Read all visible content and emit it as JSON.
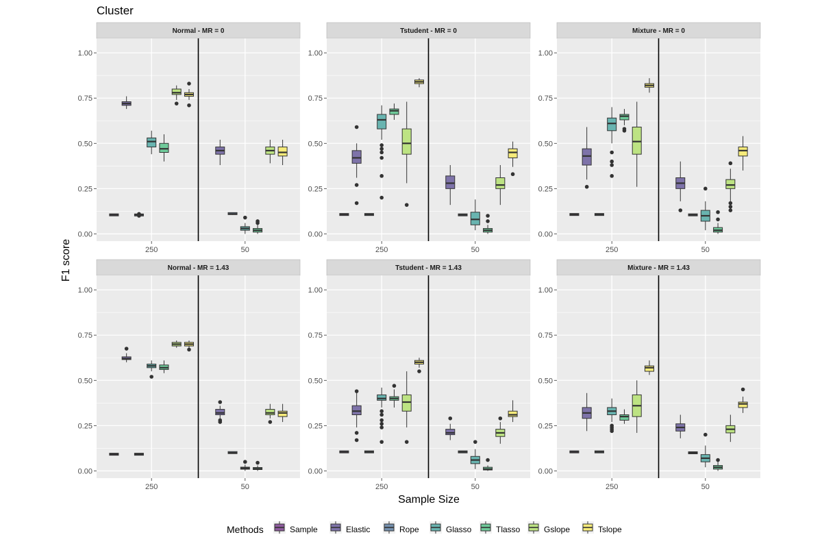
{
  "chart_data": {
    "type": "box",
    "title": "Cluster",
    "xlabel": "Sample Size",
    "ylabel": "F1 score",
    "ylim": [
      -0.04,
      1.08
    ],
    "yticks": [
      "0.00",
      "0.25",
      "0.50",
      "0.75",
      "1.00"
    ],
    "ytick_values": [
      0,
      0.25,
      0.5,
      0.75,
      1.0
    ],
    "groups": [
      "250",
      "50"
    ],
    "legend": {
      "title": "Methods",
      "position": "bottom",
      "items": [
        {
          "name": "Sample",
          "color": "#8E5B9E"
        },
        {
          "name": "Elastic",
          "color": "#7E73A9"
        },
        {
          "name": "Rope",
          "color": "#7591AF"
        },
        {
          "name": "Glasso",
          "color": "#69B4B0"
        },
        {
          "name": "Tlasso",
          "color": "#6FCA9A"
        },
        {
          "name": "Gslope",
          "color": "#BDE383"
        },
        {
          "name": "Tslope",
          "color": "#F6EB7A"
        }
      ]
    },
    "panels": [
      {
        "strip": "Normal - MR = 0",
        "boxes": [
          [
            {
              "s": 0,
              "m": 0.105,
              "q1": 0.104,
              "q3": 0.106,
              "lo": 0.103,
              "hi": 0.107,
              "o": []
            },
            {
              "s": 1,
              "m": 0.72,
              "q1": 0.71,
              "q3": 0.73,
              "lo": 0.69,
              "hi": 0.76,
              "o": []
            },
            {
              "s": 2,
              "m": 0.105,
              "q1": 0.101,
              "q3": 0.108,
              "lo": 0.1,
              "hi": 0.11,
              "o": [
                0.1,
                0.11
              ]
            },
            {
              "s": 3,
              "m": 0.51,
              "q1": 0.48,
              "q3": 0.53,
              "lo": 0.44,
              "hi": 0.57,
              "o": []
            },
            {
              "s": 4,
              "m": 0.47,
              "q1": 0.45,
              "q3": 0.5,
              "lo": 0.4,
              "hi": 0.55,
              "o": []
            },
            {
              "s": 5,
              "m": 0.78,
              "q1": 0.77,
              "q3": 0.8,
              "lo": 0.74,
              "hi": 0.82,
              "o": [
                0.72
              ]
            },
            {
              "s": 6,
              "m": 0.77,
              "q1": 0.76,
              "q3": 0.78,
              "lo": 0.74,
              "hi": 0.8,
              "o": [
                0.71,
                0.83
              ]
            }
          ],
          [
            {
              "s": 1,
              "m": 0.46,
              "q1": 0.44,
              "q3": 0.48,
              "lo": 0.38,
              "hi": 0.52,
              "o": []
            },
            {
              "s": 2,
              "m": 0.11,
              "q1": 0.109,
              "q3": 0.115,
              "lo": 0.105,
              "hi": 0.118,
              "o": []
            },
            {
              "s": 3,
              "m": 0.03,
              "q1": 0.02,
              "q3": 0.04,
              "lo": 0.0,
              "hi": 0.06,
              "o": [
                0.09
              ]
            },
            {
              "s": 4,
              "m": 0.02,
              "q1": 0.01,
              "q3": 0.03,
              "lo": 0.0,
              "hi": 0.05,
              "o": [
                0.06,
                0.07
              ]
            },
            {
              "s": 5,
              "m": 0.46,
              "q1": 0.44,
              "q3": 0.48,
              "lo": 0.39,
              "hi": 0.52,
              "o": []
            },
            {
              "s": 6,
              "m": 0.45,
              "q1": 0.43,
              "q3": 0.48,
              "lo": 0.38,
              "hi": 0.52,
              "o": []
            }
          ]
        ]
      },
      {
        "strip": "Tstudent - MR = 0",
        "boxes": [
          [
            {
              "s": 0,
              "m": 0.107,
              "q1": 0.106,
              "q3": 0.108,
              "lo": 0.105,
              "hi": 0.109,
              "o": []
            },
            {
              "s": 1,
              "m": 0.42,
              "q1": 0.39,
              "q3": 0.46,
              "lo": 0.31,
              "hi": 0.5,
              "o": [
                0.17,
                0.27,
                0.59
              ]
            },
            {
              "s": 2,
              "m": 0.107,
              "q1": 0.105,
              "q3": 0.109,
              "lo": 0.104,
              "hi": 0.11,
              "o": []
            },
            {
              "s": 3,
              "m": 0.63,
              "q1": 0.58,
              "q3": 0.66,
              "lo": 0.52,
              "hi": 0.71,
              "o": [
                0.2,
                0.32,
                0.42,
                0.45,
                0.47,
                0.49
              ]
            },
            {
              "s": 4,
              "m": 0.68,
              "q1": 0.66,
              "q3": 0.69,
              "lo": 0.63,
              "hi": 0.72,
              "o": []
            },
            {
              "s": 5,
              "m": 0.5,
              "q1": 0.44,
              "q3": 0.58,
              "lo": 0.28,
              "hi": 0.73,
              "o": [
                0.16
              ]
            },
            {
              "s": 6,
              "m": 0.84,
              "q1": 0.83,
              "q3": 0.85,
              "lo": 0.81,
              "hi": 0.86,
              "o": []
            }
          ],
          [
            {
              "s": 1,
              "m": 0.28,
              "q1": 0.25,
              "q3": 0.32,
              "lo": 0.16,
              "hi": 0.38,
              "o": []
            },
            {
              "s": 2,
              "m": 0.105,
              "q1": 0.103,
              "q3": 0.107,
              "lo": 0.1,
              "hi": 0.11,
              "o": []
            },
            {
              "s": 3,
              "m": 0.08,
              "q1": 0.05,
              "q3": 0.12,
              "lo": 0.02,
              "hi": 0.19,
              "o": []
            },
            {
              "s": 4,
              "m": 0.02,
              "q1": 0.01,
              "q3": 0.03,
              "lo": 0.0,
              "hi": 0.05,
              "o": [
                0.07,
                0.1
              ]
            },
            {
              "s": 5,
              "m": 0.27,
              "q1": 0.25,
              "q3": 0.31,
              "lo": 0.16,
              "hi": 0.38,
              "o": []
            },
            {
              "s": 6,
              "m": 0.45,
              "q1": 0.42,
              "q3": 0.47,
              "lo": 0.37,
              "hi": 0.51,
              "o": [
                0.33
              ]
            }
          ]
        ]
      },
      {
        "strip": "Mixture - MR = 0",
        "boxes": [
          [
            {
              "s": 0,
              "m": 0.107,
              "q1": 0.106,
              "q3": 0.108,
              "lo": 0.105,
              "hi": 0.109,
              "o": []
            },
            {
              "s": 1,
              "m": 0.43,
              "q1": 0.38,
              "q3": 0.47,
              "lo": 0.3,
              "hi": 0.59,
              "o": [
                0.26
              ]
            },
            {
              "s": 2,
              "m": 0.107,
              "q1": 0.105,
              "q3": 0.109,
              "lo": 0.104,
              "hi": 0.11,
              "o": []
            },
            {
              "s": 3,
              "m": 0.61,
              "q1": 0.57,
              "q3": 0.64,
              "lo": 0.5,
              "hi": 0.7,
              "o": [
                0.32,
                0.38,
                0.4,
                0.45
              ]
            },
            {
              "s": 4,
              "m": 0.65,
              "q1": 0.63,
              "q3": 0.66,
              "lo": 0.6,
              "hi": 0.69,
              "o": [
                0.57,
                0.58
              ]
            },
            {
              "s": 5,
              "m": 0.51,
              "q1": 0.44,
              "q3": 0.59,
              "lo": 0.26,
              "hi": 0.73,
              "o": []
            },
            {
              "s": 6,
              "m": 0.82,
              "q1": 0.81,
              "q3": 0.83,
              "lo": 0.78,
              "hi": 0.86,
              "o": []
            }
          ],
          [
            {
              "s": 1,
              "m": 0.28,
              "q1": 0.25,
              "q3": 0.31,
              "lo": 0.18,
              "hi": 0.4,
              "o": [
                0.13
              ]
            },
            {
              "s": 2,
              "m": 0.105,
              "q1": 0.103,
              "q3": 0.107,
              "lo": 0.1,
              "hi": 0.11,
              "o": []
            },
            {
              "s": 3,
              "m": 0.1,
              "q1": 0.07,
              "q3": 0.13,
              "lo": 0.02,
              "hi": 0.18,
              "o": [
                0.25
              ]
            },
            {
              "s": 4,
              "m": 0.02,
              "q1": 0.01,
              "q3": 0.035,
              "lo": 0.0,
              "hi": 0.06,
              "o": [
                0.08,
                0.12
              ]
            },
            {
              "s": 5,
              "m": 0.27,
              "q1": 0.25,
              "q3": 0.3,
              "lo": 0.18,
              "hi": 0.36,
              "o": [
                0.13,
                0.15,
                0.17,
                0.39
              ]
            },
            {
              "s": 6,
              "m": 0.46,
              "q1": 0.43,
              "q3": 0.48,
              "lo": 0.35,
              "hi": 0.54,
              "o": []
            }
          ]
        ]
      },
      {
        "strip": "Normal - MR = 1.43",
        "boxes": [
          [
            {
              "s": 0,
              "m": 0.092,
              "q1": 0.091,
              "q3": 0.093,
              "lo": 0.09,
              "hi": 0.094,
              "o": []
            },
            {
              "s": 1,
              "m": 0.62,
              "q1": 0.615,
              "q3": 0.63,
              "lo": 0.6,
              "hi": 0.65,
              "o": [
                0.675
              ]
            },
            {
              "s": 2,
              "m": 0.092,
              "q1": 0.09,
              "q3": 0.094,
              "lo": 0.089,
              "hi": 0.095,
              "o": []
            },
            {
              "s": 3,
              "m": 0.58,
              "q1": 0.57,
              "q3": 0.59,
              "lo": 0.55,
              "hi": 0.61,
              "o": [
                0.52
              ]
            },
            {
              "s": 4,
              "m": 0.57,
              "q1": 0.56,
              "q3": 0.585,
              "lo": 0.54,
              "hi": 0.61,
              "o": []
            },
            {
              "s": 5,
              "m": 0.7,
              "q1": 0.69,
              "q3": 0.71,
              "lo": 0.68,
              "hi": 0.72,
              "o": []
            },
            {
              "s": 6,
              "m": 0.7,
              "q1": 0.69,
              "q3": 0.71,
              "lo": 0.68,
              "hi": 0.72,
              "o": [
                0.67
              ]
            }
          ],
          [
            {
              "s": 1,
              "m": 0.32,
              "q1": 0.31,
              "q3": 0.34,
              "lo": 0.29,
              "hi": 0.36,
              "o": [
                0.27,
                0.28,
                0.38
              ]
            },
            {
              "s": 2,
              "m": 0.1,
              "q1": 0.099,
              "q3": 0.103,
              "lo": 0.097,
              "hi": 0.105,
              "o": []
            },
            {
              "s": 3,
              "m": 0.015,
              "q1": 0.01,
              "q3": 0.02,
              "lo": 0.0,
              "hi": 0.035,
              "o": [
                0.05
              ]
            },
            {
              "s": 4,
              "m": 0.012,
              "q1": 0.008,
              "q3": 0.018,
              "lo": 0.0,
              "hi": 0.03,
              "o": [
                0.045
              ]
            },
            {
              "s": 5,
              "m": 0.32,
              "q1": 0.31,
              "q3": 0.34,
              "lo": 0.29,
              "hi": 0.37,
              "o": [
                0.27
              ]
            },
            {
              "s": 6,
              "m": 0.32,
              "q1": 0.3,
              "q3": 0.33,
              "lo": 0.27,
              "hi": 0.37,
              "o": []
            }
          ]
        ]
      },
      {
        "strip": "Tstudent - MR = 1.43",
        "boxes": [
          [
            {
              "s": 0,
              "m": 0.105,
              "q1": 0.104,
              "q3": 0.106,
              "lo": 0.103,
              "hi": 0.107,
              "o": []
            },
            {
              "s": 1,
              "m": 0.33,
              "q1": 0.31,
              "q3": 0.36,
              "lo": 0.24,
              "hi": 0.43,
              "o": [
                0.17,
                0.21,
                0.44
              ]
            },
            {
              "s": 2,
              "m": 0.105,
              "q1": 0.103,
              "q3": 0.107,
              "lo": 0.1,
              "hi": 0.11,
              "o": []
            },
            {
              "s": 3,
              "m": 0.4,
              "q1": 0.39,
              "q3": 0.42,
              "lo": 0.35,
              "hi": 0.46,
              "o": [
                0.16,
                0.24,
                0.26,
                0.28,
                0.31,
                0.33
              ]
            },
            {
              "s": 4,
              "m": 0.4,
              "q1": 0.39,
              "q3": 0.41,
              "lo": 0.35,
              "hi": 0.45,
              "o": [
                0.47
              ]
            },
            {
              "s": 5,
              "m": 0.38,
              "q1": 0.33,
              "q3": 0.42,
              "lo": 0.24,
              "hi": 0.55,
              "o": [
                0.16
              ]
            },
            {
              "s": 6,
              "m": 0.6,
              "q1": 0.59,
              "q3": 0.61,
              "lo": 0.57,
              "hi": 0.625,
              "o": [
                0.55
              ]
            }
          ],
          [
            {
              "s": 1,
              "m": 0.21,
              "q1": 0.2,
              "q3": 0.23,
              "lo": 0.17,
              "hi": 0.26,
              "o": [
                0.29
              ]
            },
            {
              "s": 2,
              "m": 0.105,
              "q1": 0.103,
              "q3": 0.107,
              "lo": 0.1,
              "hi": 0.11,
              "o": []
            },
            {
              "s": 3,
              "m": 0.06,
              "q1": 0.04,
              "q3": 0.08,
              "lo": 0.01,
              "hi": 0.12,
              "o": [
                0.16
              ]
            },
            {
              "s": 4,
              "m": 0.01,
              "q1": 0.005,
              "q3": 0.02,
              "lo": 0.0,
              "hi": 0.03,
              "o": [
                0.06
              ]
            },
            {
              "s": 5,
              "m": 0.21,
              "q1": 0.19,
              "q3": 0.23,
              "lo": 0.15,
              "hi": 0.27,
              "o": [
                0.29
              ]
            },
            {
              "s": 6,
              "m": 0.31,
              "q1": 0.3,
              "q3": 0.33,
              "lo": 0.27,
              "hi": 0.39,
              "o": []
            }
          ]
        ]
      },
      {
        "strip": "Mixture - MR = 1.43",
        "boxes": [
          [
            {
              "s": 0,
              "m": 0.105,
              "q1": 0.104,
              "q3": 0.106,
              "lo": 0.103,
              "hi": 0.107,
              "o": []
            },
            {
              "s": 1,
              "m": 0.32,
              "q1": 0.29,
              "q3": 0.35,
              "lo": 0.22,
              "hi": 0.43,
              "o": []
            },
            {
              "s": 2,
              "m": 0.105,
              "q1": 0.103,
              "q3": 0.107,
              "lo": 0.1,
              "hi": 0.11,
              "o": []
            },
            {
              "s": 3,
              "m": 0.33,
              "q1": 0.31,
              "q3": 0.35,
              "lo": 0.27,
              "hi": 0.4,
              "o": [
                0.22,
                0.23,
                0.24,
                0.25
              ]
            },
            {
              "s": 4,
              "m": 0.3,
              "q1": 0.28,
              "q3": 0.31,
              "lo": 0.26,
              "hi": 0.34,
              "o": []
            },
            {
              "s": 5,
              "m": 0.36,
              "q1": 0.3,
              "q3": 0.42,
              "lo": 0.21,
              "hi": 0.5,
              "o": []
            },
            {
              "s": 6,
              "m": 0.57,
              "q1": 0.55,
              "q3": 0.58,
              "lo": 0.53,
              "hi": 0.61,
              "o": []
            }
          ],
          [
            {
              "s": 1,
              "m": 0.24,
              "q1": 0.22,
              "q3": 0.26,
              "lo": 0.18,
              "hi": 0.31,
              "o": []
            },
            {
              "s": 2,
              "m": 0.1,
              "q1": 0.098,
              "q3": 0.102,
              "lo": 0.095,
              "hi": 0.104,
              "o": []
            },
            {
              "s": 3,
              "m": 0.07,
              "q1": 0.05,
              "q3": 0.09,
              "lo": 0.02,
              "hi": 0.14,
              "o": [
                0.2
              ]
            },
            {
              "s": 4,
              "m": 0.02,
              "q1": 0.01,
              "q3": 0.03,
              "lo": 0.0,
              "hi": 0.05,
              "o": [
                0.06
              ]
            },
            {
              "s": 5,
              "m": 0.23,
              "q1": 0.21,
              "q3": 0.25,
              "lo": 0.16,
              "hi": 0.31,
              "o": []
            },
            {
              "s": 6,
              "m": 0.37,
              "q1": 0.35,
              "q3": 0.38,
              "lo": 0.32,
              "hi": 0.41,
              "o": [
                0.45
              ]
            }
          ]
        ]
      }
    ]
  }
}
